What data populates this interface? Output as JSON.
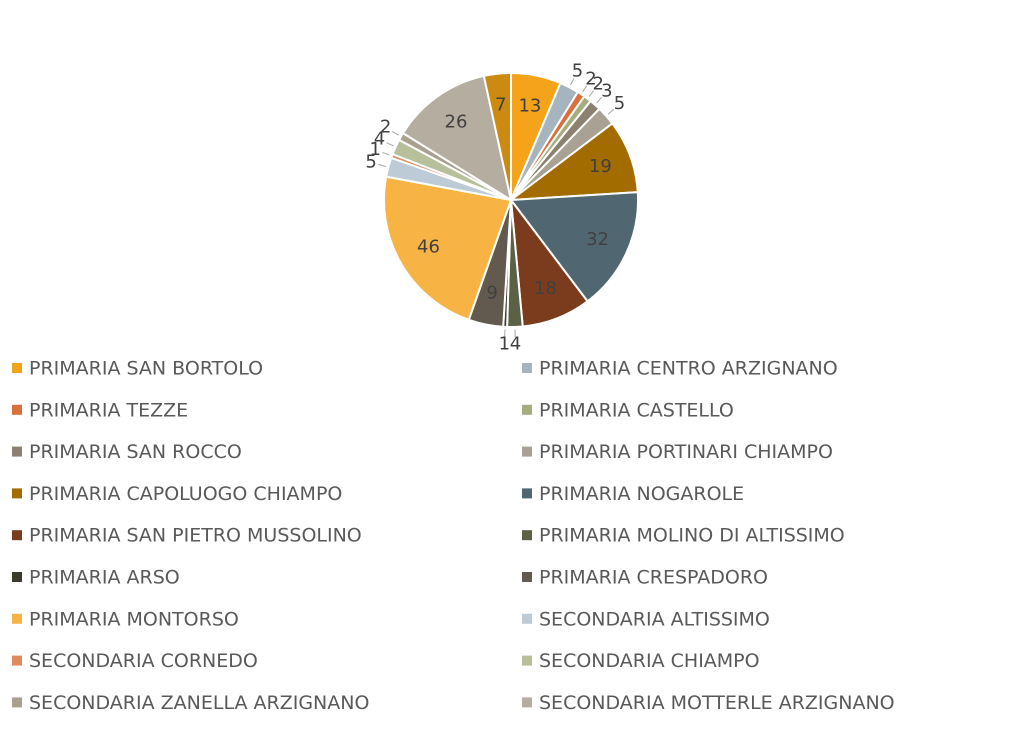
{
  "chart_data": {
    "type": "pie",
    "categories": [
      "PRIMARIA SAN BORTOLO",
      "PRIMARIA CENTRO ARZIGNANO",
      "PRIMARIA TEZZE",
      "PRIMARIA CASTELLO",
      "PRIMARIA SAN ROCCO",
      "PRIMARIA PORTINARI CHIAMPO",
      "PRIMARIA CAPOLUOGO CHIAMPO",
      "PRIMARIA NOGAROLE",
      "PRIMARIA SAN PIETRO MUSSOLINO",
      "PRIMARIA MOLINO DI ALTISSIMO",
      "PRIMARIA ARSO",
      "PRIMARIA CRESPADORO",
      "PRIMARIA MONTORSO",
      "SECONDARIA ALTISSIMO",
      "SECONDARIA CORNEDO",
      "SECONDARIA CHIAMPO",
      "SECONDARIA ZANELLA ARZIGNANO",
      "SECONDARIA MOTTERLE ARZIGNANO",
      null
    ],
    "values": [
      13,
      5,
      2,
      2,
      3,
      5,
      19,
      32,
      18,
      4,
      1,
      9,
      46,
      5,
      1,
      4,
      2,
      26,
      7
    ],
    "colors": [
      "#f5a31a",
      "#a5b4bf",
      "#d9703a",
      "#a4ad7e",
      "#8c8170",
      "#a8a194",
      "#a36c00",
      "#506670",
      "#7b3c1e",
      "#5a6144",
      "#3c3a2c",
      "#625a4e",
      "#f7b445",
      "#bccbd6",
      "#e0895e",
      "#b7c09a",
      "#a9a090",
      "#b5ada0",
      "#cc8a10"
    ],
    "legend": "bottom"
  }
}
